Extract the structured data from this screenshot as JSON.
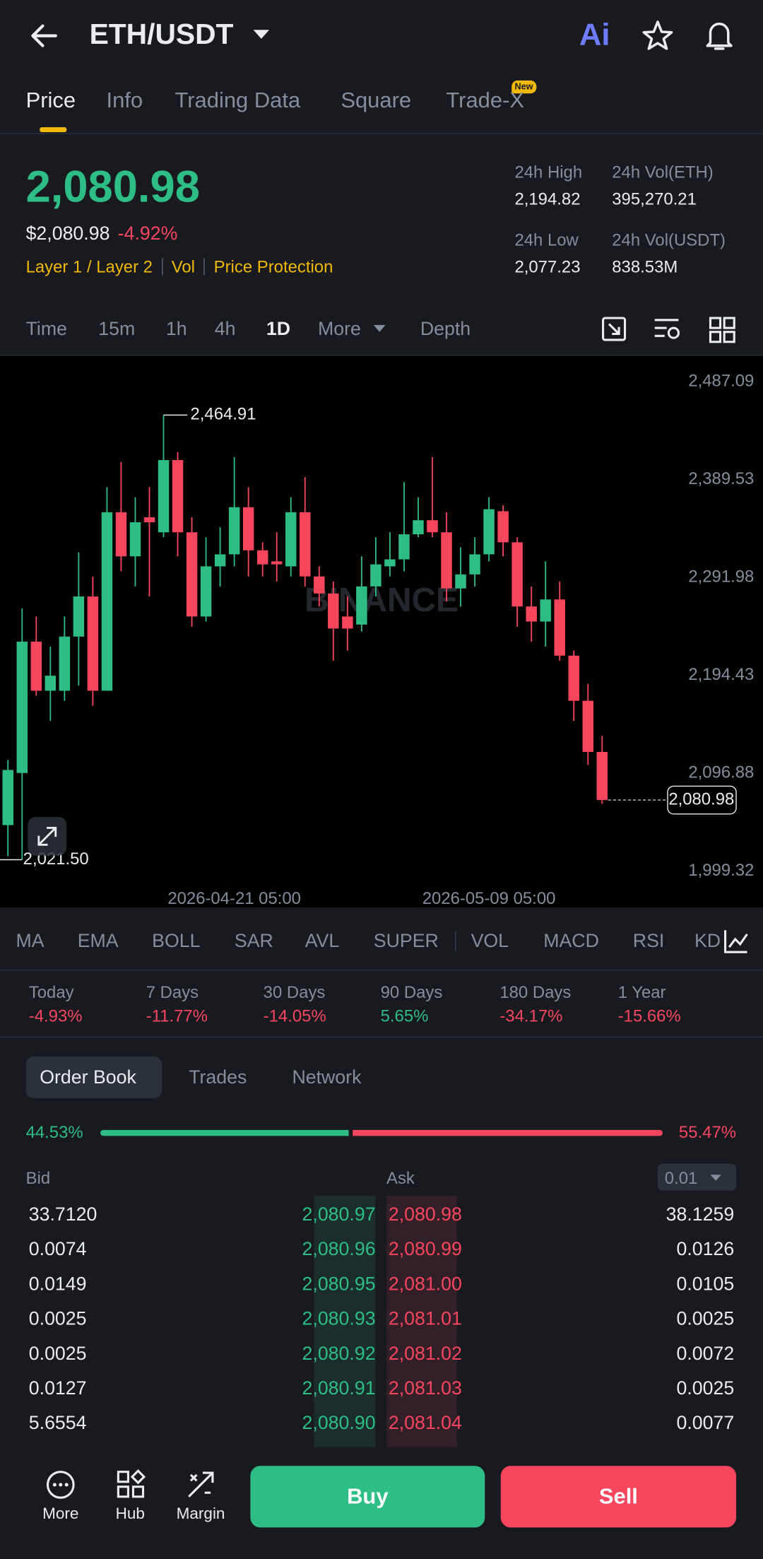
{
  "header": {
    "pair": "ETH/USDT",
    "ai": "Ai"
  },
  "tabs": {
    "items": [
      "Price",
      "Info",
      "Trading Data",
      "Square",
      "Trade-X"
    ],
    "badge": "New"
  },
  "ticker": {
    "price": "2,080.98",
    "usd_price": "$2,080.98",
    "change": "-4.92%",
    "tags": [
      "Layer 1 / Layer 2",
      "Vol",
      "Price Protection"
    ]
  },
  "stats": [
    {
      "label": "24h High",
      "value": "2,194.82"
    },
    {
      "label": "24h Vol(ETH)",
      "value": "395,270.21"
    },
    {
      "label": "24h Low",
      "value": "2,077.23"
    },
    {
      "label": "24h Vol(USDT)",
      "value": "838.53M"
    }
  ],
  "intervals": [
    "Time",
    "15m",
    "1h",
    "4h",
    "1D",
    "More",
    "Depth"
  ],
  "chart_data": {
    "type": "candlestick",
    "watermark": "BINANCE",
    "up_color": "#2ebd85",
    "down_color": "#f6465d",
    "categories": [
      null,
      null,
      null,
      null,
      null,
      null,
      null,
      null,
      null,
      null,
      null,
      null,
      null,
      null,
      null,
      null,
      "2026-04-21 05:00",
      null,
      null,
      null,
      null,
      null,
      null,
      null,
      null,
      null,
      null,
      null,
      null,
      null,
      null,
      null,
      null,
      null,
      "2026-05-09 05:00",
      null,
      null,
      null,
      null,
      null,
      null,
      null,
      null
    ],
    "open": [
      2056,
      2108,
      2239,
      2190,
      2190,
      2244,
      2284,
      2190,
      2368,
      2324,
      2363,
      2348,
      2420,
      2348,
      2264,
      2314,
      2326,
      2373,
      2330,
      2319,
      2314,
      2368,
      2304,
      2287,
      2264,
      2256,
      2294,
      2314,
      2321,
      2346,
      2360,
      2348,
      2292,
      2306,
      2326,
      2369,
      2338,
      2274,
      2259,
      2281,
      2225,
      2180,
      2129
    ],
    "high": [
      2121,
      2272,
      2264,
      2234,
      2264,
      2328,
      2304,
      2393,
      2418,
      2383,
      2393,
      2464.91,
      2428,
      2363,
      2343,
      2353,
      2423,
      2393,
      2338,
      2348,
      2383,
      2403,
      2314,
      2299,
      2284,
      2324,
      2343,
      2348,
      2398,
      2383,
      2423,
      2368,
      2333,
      2343,
      2383,
      2375,
      2343,
      2294,
      2319,
      2299,
      2230,
      2197,
      2145
    ],
    "low": [
      2025,
      2021.5,
      2185,
      2160,
      2180,
      2195,
      2175,
      2190,
      2309,
      2294,
      2284,
      2343,
      2324,
      2254,
      2259,
      2294,
      2314,
      2304,
      2304,
      2299,
      2304,
      2294,
      2274,
      2220,
      2230,
      2249,
      2284,
      2304,
      2309,
      2343,
      2343,
      2279,
      2274,
      2294,
      2319,
      2324,
      2254,
      2239,
      2234,
      2220,
      2160,
      2116,
      2077.23
    ],
    "close": [
      2111,
      2239,
      2190,
      2205,
      2244,
      2284,
      2190,
      2368,
      2324,
      2358,
      2358,
      2420,
      2348,
      2264,
      2314,
      2326,
      2373,
      2330,
      2316,
      2316,
      2368,
      2304,
      2287,
      2252,
      2252,
      2294,
      2316,
      2321,
      2346,
      2360,
      2348,
      2292,
      2306,
      2326,
      2371,
      2338,
      2274,
      2259,
      2281,
      2225,
      2180,
      2129,
      2080.98
    ],
    "ylim": [
      1974,
      2524
    ],
    "yticks": [
      {
        "value": 2487.09,
        "label": "2,487.09"
      },
      {
        "value": 2389.53,
        "label": "2,389.53"
      },
      {
        "value": 2291.98,
        "label": "2,291.98"
      },
      {
        "value": 2194.43,
        "label": "2,194.43"
      },
      {
        "value": 2096.88,
        "label": "2,096.88"
      },
      {
        "value": 1999.32,
        "label": "1,999.32"
      }
    ],
    "high_label": "2,464.91",
    "low_label": "2,021.50",
    "last_label": "2,080.98"
  },
  "indicators": [
    "MA",
    "EMA",
    "BOLL",
    "SAR",
    "AVL",
    "SUPER",
    "VOL",
    "MACD",
    "RSI",
    "KD"
  ],
  "performance": [
    {
      "period": "Today",
      "change": "-4.93%"
    },
    {
      "period": "7 Days",
      "change": "-11.77%"
    },
    {
      "period": "30 Days",
      "change": "-14.05%"
    },
    {
      "period": "90 Days",
      "change": "5.65%"
    },
    {
      "period": "180 Days",
      "change": "-34.17%"
    },
    {
      "period": "1 Year",
      "change": "-15.66%"
    }
  ],
  "order_book": {
    "tabs": [
      "Order Book",
      "Trades",
      "Network"
    ],
    "bid_ratio": 44.53,
    "bid_ratio_label": "44.53%",
    "ask_ratio": 55.47,
    "ask_ratio_label": "55.47%",
    "bid_header": "Bid",
    "ask_header": "Ask",
    "precision": "0.01",
    "bids": [
      {
        "amount": "33.7120",
        "price": "2,080.97"
      },
      {
        "amount": "0.0074",
        "price": "2,080.96"
      },
      {
        "amount": "0.0149",
        "price": "2,080.95"
      },
      {
        "amount": "0.0025",
        "price": "2,080.93"
      },
      {
        "amount": "0.0025",
        "price": "2,080.92"
      },
      {
        "amount": "0.0127",
        "price": "2,080.91"
      },
      {
        "amount": "5.6554",
        "price": "2,080.90"
      }
    ],
    "asks": [
      {
        "price": "2,080.98",
        "amount": "38.1259"
      },
      {
        "price": "2,080.99",
        "amount": "0.0126"
      },
      {
        "price": "2,081.00",
        "amount": "0.0105"
      },
      {
        "price": "2,081.01",
        "amount": "0.0025"
      },
      {
        "price": "2,081.02",
        "amount": "0.0072"
      },
      {
        "price": "2,081.03",
        "amount": "0.0025"
      },
      {
        "price": "2,081.04",
        "amount": "0.0077"
      }
    ]
  },
  "footer": {
    "nav": [
      "More",
      "Hub",
      "Margin"
    ],
    "buy": "Buy",
    "sell": "Sell"
  }
}
